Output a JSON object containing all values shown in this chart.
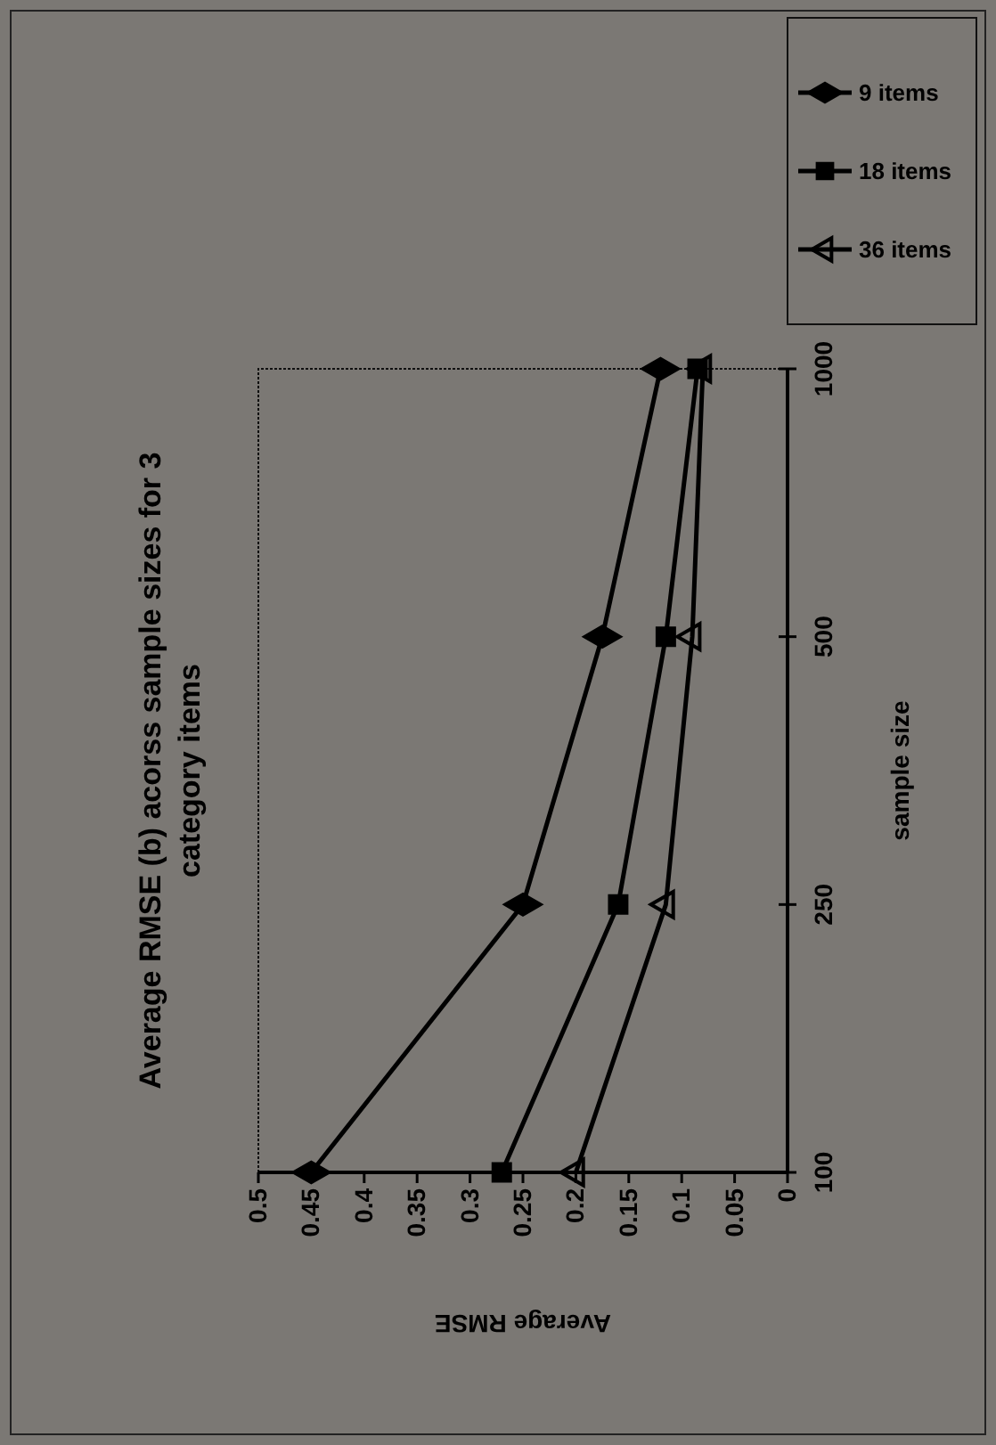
{
  "chart_data": {
    "type": "line",
    "title": "Average RMSE (b) acorss sample sizes for 3 category items",
    "xlabel": "Average RMSE",
    "ylabel": "sample size",
    "orientation": "horizontal",
    "categories": [
      "1000",
      "500",
      "250",
      "100"
    ],
    "series": [
      {
        "name": "9 items",
        "color": "#000000",
        "marker": "diamond",
        "values": [
          0.12,
          0.175,
          0.25,
          0.45
        ]
      },
      {
        "name": "18 items",
        "color": "#000000",
        "marker": "square",
        "values": [
          0.085,
          0.115,
          0.16,
          0.27
        ]
      },
      {
        "name": "36 items",
        "color": "#000000",
        "marker": "triangle",
        "values": [
          0.08,
          0.09,
          0.115,
          0.2
        ]
      }
    ],
    "xlim": [
      0.5,
      0
    ],
    "xticks": [
      0.5,
      0.45,
      0.4,
      0.35,
      0.3,
      0.25,
      0.2,
      0.15,
      0.1,
      0.05,
      0
    ],
    "grid": false,
    "legend": "top right",
    "line_style": "solid"
  }
}
